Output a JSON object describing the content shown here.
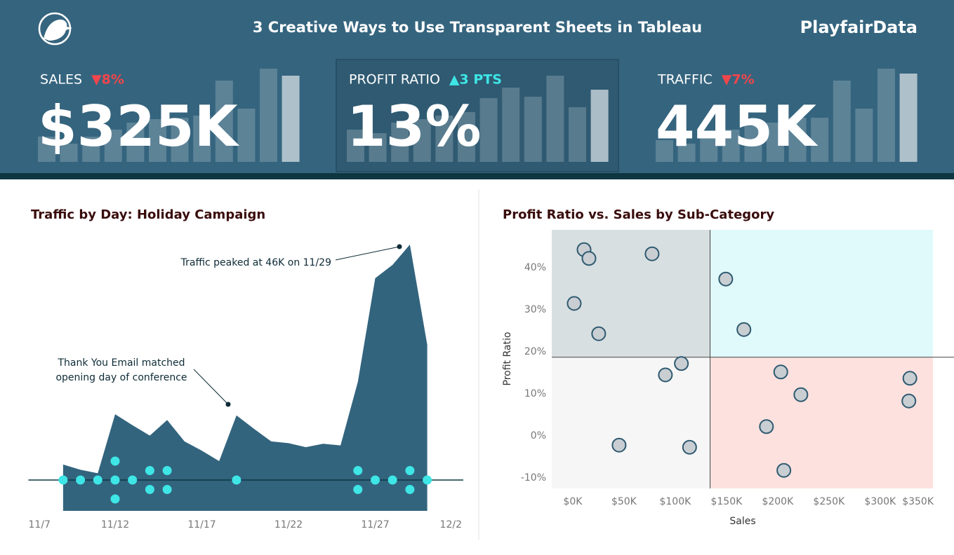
{
  "header": {
    "title": "3 Creative Ways to Use Transparent Sheets in Tableau",
    "brand": "PlayfairData"
  },
  "kpis": [
    {
      "label": "SALES",
      "change": "▼8%",
      "direction": "down",
      "value": "$325K",
      "bars": [
        36,
        26,
        36,
        46,
        56,
        61,
        63,
        66,
        116,
        76,
        133,
        123
      ]
    },
    {
      "label": "PROFIT RATIO",
      "change": "▲3 PTS",
      "direction": "up",
      "value": "13%",
      "bars": [
        46,
        41,
        56,
        61,
        66,
        71,
        91,
        106,
        93,
        123,
        78,
        103
      ]
    },
    {
      "label": "TRAFFIC",
      "change": "▼7%",
      "direction": "down",
      "value": "445K",
      "bars": [
        31,
        26,
        41,
        46,
        51,
        56,
        63,
        63,
        116,
        76,
        133,
        126
      ]
    }
  ],
  "kpi_colors": {
    "up": "#3ee6e6",
    "down": "#f0464b"
  },
  "chart_data": [
    {
      "type": "area",
      "title": "Traffic by Day: Holiday Campaign",
      "color": "#33647e",
      "marker_color": "#3ee6e6",
      "categories": [
        "11/7",
        null,
        null,
        null,
        null,
        "11/12",
        null,
        null,
        null,
        null,
        "11/17",
        null,
        null,
        null,
        null,
        "11/22",
        null,
        null,
        null,
        null,
        "11/27",
        null,
        null,
        null,
        null,
        "12/2"
      ],
      "values": [
        null,
        null,
        8.0,
        7.1,
        6.5,
        16.7,
        14.8,
        13.0,
        15.7,
        12.0,
        10.4,
        8.6,
        16.5,
        14.2,
        12.0,
        11.7,
        11.0,
        11.6,
        11.3,
        22.3,
        40.2,
        42.5,
        46.0,
        28.7,
        null,
        null
      ],
      "markers": [
        0,
        0,
        1,
        1,
        1,
        3,
        1,
        2,
        2,
        0,
        0,
        0,
        1,
        0,
        0,
        0,
        0,
        0,
        0,
        2,
        1,
        1,
        2,
        1,
        0,
        0
      ],
      "ylim": [
        0,
        47
      ],
      "annotations": [
        [
          "Traffic peaked at 46K on 11/29"
        ],
        [
          "Thank You Email matched",
          "opening day of conference"
        ]
      ]
    },
    {
      "type": "scatter",
      "title": "Profit Ratio vs. Sales by Sub-Category",
      "x_label": "Sales",
      "y_label": "Profit Ratio",
      "point_color": "#c9ced3",
      "point_stroke": "#2e5a70",
      "quadrant_colors": [
        "#d8dfe1",
        "#e0f9fa",
        "#f6f6f6",
        "#fde1df"
      ],
      "reference_x": 134000,
      "reference_y": 18.7,
      "x": [
        11000,
        15800,
        77400,
        1400,
        25300,
        149300,
        167000,
        106000,
        90400,
        45200,
        114000,
        203000,
        222600,
        189000,
        206000,
        329000,
        328000
      ],
      "values": [
        44.3,
        42.2,
        43.3,
        31.5,
        24.3,
        37.3,
        25.3,
        17.2,
        14.5,
        -2.2,
        -2.7,
        15.2,
        9.8,
        2.2,
        -8.2,
        13.7,
        8.3
      ],
      "xlim": [
        -20500,
        351500
      ],
      "ylim": [
        -12.5,
        49
      ],
      "xticks": [
        {
          "value": 0,
          "label": "$0K"
        },
        {
          "value": 50000,
          "label": "$50K"
        },
        {
          "value": 100000,
          "label": "$100K"
        },
        {
          "value": 150000,
          "label": "$150K"
        },
        {
          "value": 200000,
          "label": "$200K"
        },
        {
          "value": 250000,
          "label": "$250K"
        },
        {
          "value": 300000,
          "label": "$300K"
        },
        {
          "value": 350000,
          "label": "$350K"
        }
      ],
      "yticks": [
        {
          "value": -10,
          "label": "-10%"
        },
        {
          "value": 0,
          "label": "0%"
        },
        {
          "value": 10,
          "label": "10%"
        },
        {
          "value": 20,
          "label": "20%"
        },
        {
          "value": 30,
          "label": "30%"
        },
        {
          "value": 40,
          "label": "40%"
        }
      ]
    }
  ]
}
